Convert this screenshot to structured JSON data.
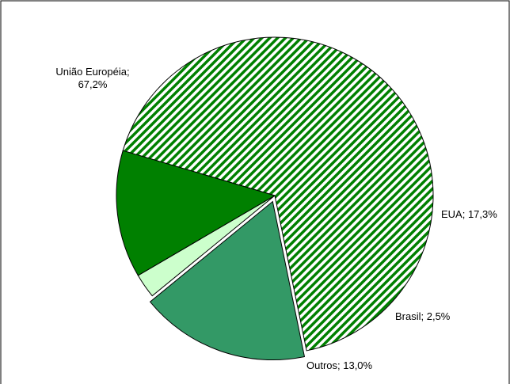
{
  "chart_data": {
    "type": "pie",
    "title": "",
    "slices": [
      {
        "label": "União Européia",
        "value_text": "67,2%",
        "value": 67.2,
        "color": "#008000",
        "pattern": "diagonal-stripes"
      },
      {
        "label": "EUA",
        "value_text": "17,3%",
        "value": 17.3,
        "color": "#339966",
        "pattern": "solid"
      },
      {
        "label": "Brasil",
        "value_text": "2,5%",
        "value": 2.5,
        "color": "#ccffcc",
        "pattern": "solid"
      },
      {
        "label": "Outros",
        "value_text": "13,0%",
        "value": 13.0,
        "color": "#008000",
        "pattern": "solid"
      }
    ],
    "exploded": true,
    "legend": "none",
    "data_labels": "category-and-value"
  },
  "labels": {
    "uniao_line1": "União Européia;",
    "uniao_line2": "67,2%",
    "eua": "EUA; 17,3%",
    "brasil": "Brasil; 2,5%",
    "outros": "Outros; 13,0%"
  }
}
